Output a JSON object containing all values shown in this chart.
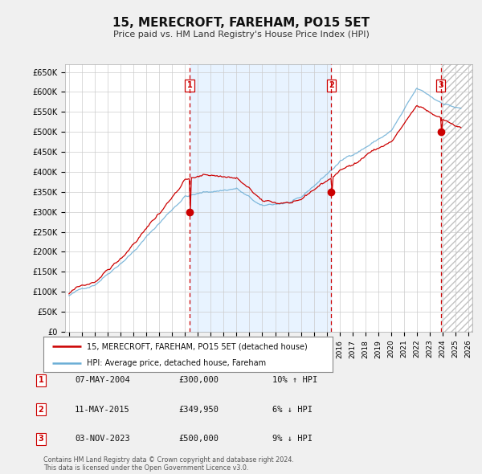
{
  "title": "15, MERECROFT, FAREHAM, PO15 5ET",
  "subtitle": "Price paid vs. HM Land Registry's House Price Index (HPI)",
  "ylabel_ticks": [
    "£0",
    "£50K",
    "£100K",
    "£150K",
    "£200K",
    "£250K",
    "£300K",
    "£350K",
    "£400K",
    "£450K",
    "£500K",
    "£550K",
    "£600K",
    "£650K"
  ],
  "ytick_values": [
    0,
    50000,
    100000,
    150000,
    200000,
    250000,
    300000,
    350000,
    400000,
    450000,
    500000,
    550000,
    600000,
    650000
  ],
  "ylim": [
    0,
    670000
  ],
  "xlim_start": 1994.7,
  "xlim_end": 2026.3,
  "hpi_color": "#6baed6",
  "hpi_fill_color": "#ddeeff",
  "price_color": "#cc0000",
  "sale_marker_color": "#cc0000",
  "background_color": "#f0f0f0",
  "plot_bg_color": "#ffffff",
  "grid_color": "#cccccc",
  "sales": [
    {
      "date_num": 2004.35,
      "price": 300000,
      "label": "1"
    },
    {
      "date_num": 2015.36,
      "price": 349950,
      "label": "2"
    },
    {
      "date_num": 2023.84,
      "price": 500000,
      "label": "3"
    }
  ],
  "legend_entries": [
    {
      "label": "15, MERECROFT, FAREHAM, PO15 5ET (detached house)",
      "color": "#cc0000"
    },
    {
      "label": "HPI: Average price, detached house, Fareham",
      "color": "#6baed6"
    }
  ],
  "table_rows": [
    {
      "num": "1",
      "date": "07-MAY-2004",
      "price": "£300,000",
      "hpi": "10% ↑ HPI"
    },
    {
      "num": "2",
      "date": "11-MAY-2015",
      "price": "£349,950",
      "hpi": "6% ↓ HPI"
    },
    {
      "num": "3",
      "date": "03-NOV-2023",
      "price": "£500,000",
      "hpi": "9% ↓ HPI"
    }
  ],
  "footer": "Contains HM Land Registry data © Crown copyright and database right 2024.\nThis data is licensed under the Open Government Licence v3.0."
}
